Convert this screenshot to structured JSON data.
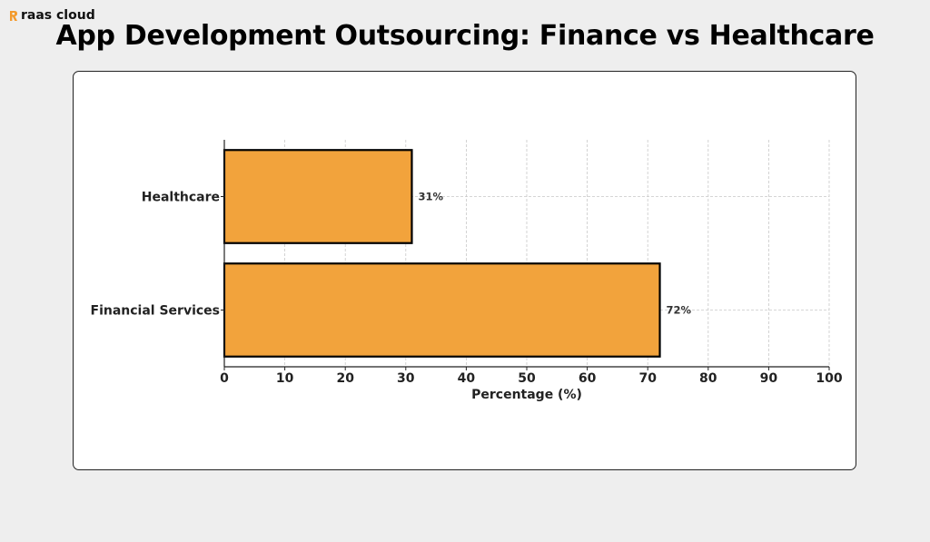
{
  "brand": {
    "name": "raas cloud",
    "accent_color": "#f39a2b"
  },
  "chart_data": {
    "type": "bar",
    "orientation": "horizontal",
    "title": "App Development Outsourcing: Finance vs Healthcare",
    "categories": [
      "Healthcare",
      "Financial Services"
    ],
    "values": [
      31,
      72
    ],
    "value_labels": [
      "31%",
      "72%"
    ],
    "xlabel": "Percentage (%)",
    "ylabel": "",
    "xlim": [
      0,
      100
    ],
    "xticks": [
      "0",
      "10",
      "20",
      "30",
      "40",
      "50",
      "60",
      "70",
      "80",
      "90",
      "100"
    ],
    "bar_color": "#f2a33c",
    "bar_edge_color": "#000000",
    "grid": true
  }
}
